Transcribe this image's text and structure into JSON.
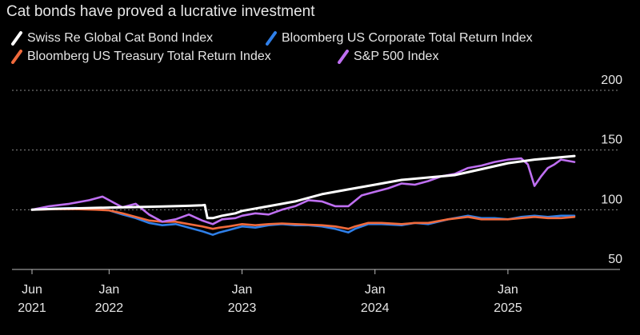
{
  "chart_data": {
    "type": "line",
    "title": "Cat bonds have proved a lucrative investment",
    "xlabel": "",
    "ylabel": "",
    "ylim": [
      50,
      200
    ],
    "y_ticks": [
      50,
      100,
      150,
      200
    ],
    "x_ticks": [
      {
        "t": 2021.42,
        "line1": "Jun",
        "line2": "2021"
      },
      {
        "t": 2022.0,
        "line1": "Jan",
        "line2": "2022"
      },
      {
        "t": 2023.0,
        "line1": "Jan",
        "line2": "2023"
      },
      {
        "t": 2024.0,
        "line1": "Jan",
        "line2": "2024"
      },
      {
        "t": 2025.0,
        "line1": "Jan",
        "line2": "2025"
      }
    ],
    "legend_position": "top-left",
    "series": [
      {
        "name": "Bloomberg US Corporate Total Return Index",
        "color": "#2f7fe8",
        "t": [
          2021.42,
          2021.6,
          2021.75,
          2021.9,
          2022.0,
          2022.1,
          2022.2,
          2022.3,
          2022.4,
          2022.5,
          2022.6,
          2022.7,
          2022.78,
          2022.83,
          2022.9,
          2023.0,
          2023.1,
          2023.2,
          2023.3,
          2023.4,
          2023.5,
          2023.6,
          2023.7,
          2023.8,
          2023.85,
          2023.95,
          2024.05,
          2024.2,
          2024.3,
          2024.4,
          2024.55,
          2024.7,
          2024.8,
          2024.9,
          2025.0,
          2025.1,
          2025.2,
          2025.3,
          2025.4,
          2025.5
        ],
        "values": [
          100,
          101,
          101.5,
          100.5,
          99.5,
          96,
          93,
          89,
          87,
          88,
          85,
          82,
          79,
          81,
          83,
          86,
          85,
          87,
          88,
          87,
          87,
          86,
          84,
          81,
          84,
          88,
          88,
          87,
          89,
          88,
          92,
          95,
          93,
          93,
          92,
          94,
          95,
          94,
          95,
          95
        ]
      },
      {
        "name": "Bloomberg US Treasury Total Return Index",
        "color": "#f06a3c",
        "t": [
          2021.42,
          2021.6,
          2021.75,
          2021.9,
          2022.0,
          2022.1,
          2022.2,
          2022.3,
          2022.4,
          2022.5,
          2022.6,
          2022.7,
          2022.78,
          2022.83,
          2022.9,
          2023.0,
          2023.1,
          2023.2,
          2023.3,
          2023.4,
          2023.5,
          2023.6,
          2023.7,
          2023.8,
          2023.85,
          2023.95,
          2024.05,
          2024.2,
          2024.3,
          2024.4,
          2024.55,
          2024.7,
          2024.8,
          2024.9,
          2025.0,
          2025.1,
          2025.2,
          2025.3,
          2025.4,
          2025.5
        ],
        "values": [
          100,
          100.5,
          100.5,
          100,
          99.5,
          97,
          94,
          91,
          90,
          90,
          88,
          86,
          84,
          85,
          86,
          88,
          87,
          88,
          88.5,
          88,
          87.5,
          87,
          86,
          84,
          86,
          89,
          89,
          88,
          89,
          89,
          92,
          94,
          92,
          92,
          92,
          93,
          94,
          93,
          93,
          94
        ]
      },
      {
        "name": "S&P 500 Index",
        "color": "#bf6ff2",
        "t": [
          2021.42,
          2021.55,
          2021.7,
          2021.85,
          2021.95,
          2022.0,
          2022.1,
          2022.2,
          2022.3,
          2022.4,
          2022.5,
          2022.6,
          2022.7,
          2022.78,
          2022.85,
          2022.95,
          2023.0,
          2023.1,
          2023.2,
          2023.3,
          2023.4,
          2023.5,
          2023.6,
          2023.7,
          2023.8,
          2023.9,
          2024.0,
          2024.1,
          2024.2,
          2024.3,
          2024.4,
          2024.5,
          2024.6,
          2024.7,
          2024.8,
          2024.9,
          2025.0,
          2025.1,
          2025.15,
          2025.2,
          2025.25,
          2025.3,
          2025.35,
          2025.4,
          2025.5
        ],
        "values": [
          100,
          103,
          105,
          108,
          111,
          108,
          102,
          105,
          96,
          90,
          92,
          96,
          91,
          88,
          92,
          93,
          95,
          97,
          96,
          100,
          103,
          108,
          107,
          103,
          103,
          112,
          115,
          118,
          122,
          121,
          124,
          128,
          130,
          135,
          137,
          140,
          142,
          143,
          138,
          120,
          128,
          135,
          138,
          142,
          140
        ]
      },
      {
        "name": "Swiss Re Global Cat Bond Index",
        "color": "#ffffff",
        "t": [
          2021.42,
          2021.6,
          2021.8,
          2022.0,
          2022.2,
          2022.4,
          2022.6,
          2022.7,
          2022.72,
          2022.74,
          2022.78,
          2022.85,
          2022.95,
          2023.0,
          2023.2,
          2023.4,
          2023.5,
          2023.6,
          2023.8,
          2024.0,
          2024.2,
          2024.4,
          2024.6,
          2024.8,
          2025.0,
          2025.2,
          2025.4,
          2025.5
        ],
        "values": [
          100,
          100.8,
          101.3,
          101.8,
          102.2,
          102.8,
          103.3,
          103.8,
          104,
          93,
          93,
          95,
          97,
          99,
          103,
          107,
          110,
          113,
          117,
          121,
          125,
          127,
          129,
          134,
          139,
          142,
          144,
          145
        ]
      }
    ]
  }
}
